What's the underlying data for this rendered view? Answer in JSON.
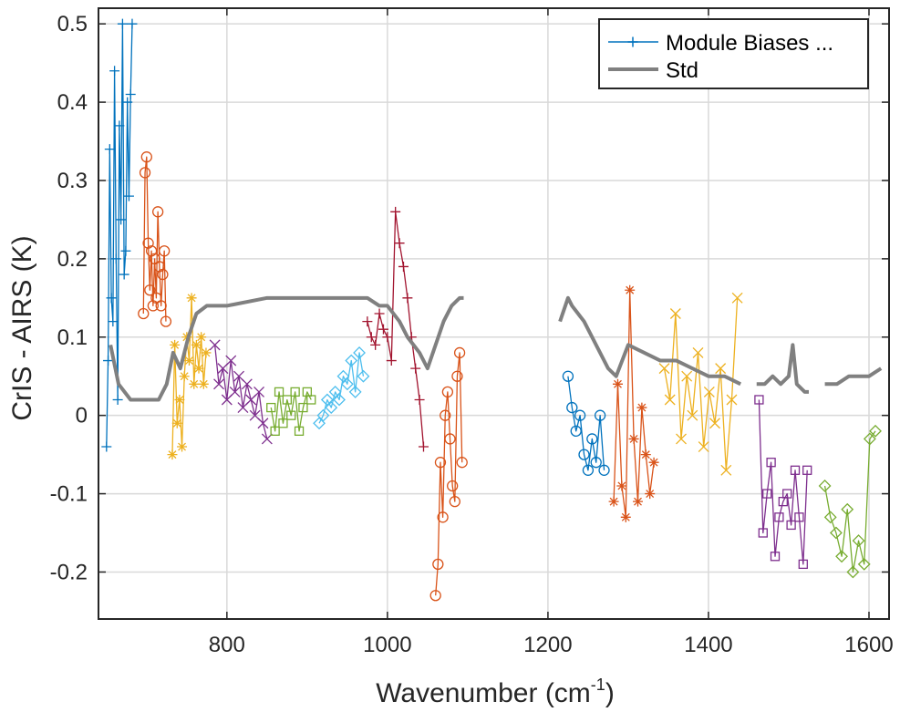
{
  "chart_data": {
    "type": "line",
    "xlabel": "Wavenumber (cm",
    "xlabel_superscript": "-1",
    "xlabel_suffix": ")",
    "ylabel": "CrIS - AIRS (K)",
    "xlim": [
      640,
      1625
    ],
    "ylim": [
      -0.26,
      0.52
    ],
    "grid": true,
    "legend_position": "top-right",
    "x_ticks": [
      800,
      1000,
      1200,
      1400,
      1600
    ],
    "y_ticks": [
      0.5,
      0.4,
      0.3,
      0.2,
      0.1,
      0,
      -0.1,
      -0.2
    ],
    "y_tick_labels": [
      "0.5",
      "0.4",
      "0.3",
      "0.2",
      "0.1",
      "0",
      "-0.1",
      "-0.2"
    ],
    "legend": [
      {
        "label": "Module Biases ...",
        "color": "#0072BD",
        "marker": "plus"
      },
      {
        "label": "Std",
        "color": "#808080",
        "marker": "none"
      }
    ],
    "series": [
      {
        "name": "Module Biases ...",
        "color": "#0072BD",
        "marker": "plus",
        "x": [
          650,
          652,
          654,
          656,
          658,
          660,
          662,
          664,
          666,
          668,
          670,
          672,
          674,
          676,
          678,
          680,
          682
        ],
        "y": [
          -0.04,
          0.07,
          0.34,
          0.15,
          0.12,
          0.44,
          0.2,
          0.02,
          0.37,
          0.25,
          0.5,
          0.18,
          0.21,
          0.4,
          0.28,
          0.41,
          0.5
        ]
      },
      {
        "color": "#D95319",
        "marker": "circle",
        "x": [
          696,
          698,
          700,
          702,
          704,
          706,
          708,
          710,
          712,
          714,
          716,
          718,
          720,
          722,
          724
        ],
        "y": [
          0.13,
          0.31,
          0.33,
          0.22,
          0.16,
          0.21,
          0.14,
          0.2,
          0.15,
          0.26,
          0.19,
          0.14,
          0.18,
          0.21,
          0.12
        ]
      },
      {
        "color": "#EDB120",
        "marker": "star",
        "x": [
          732,
          735,
          738,
          741,
          744,
          747,
          750,
          753,
          756,
          759,
          762,
          765,
          768,
          771,
          774
        ],
        "y": [
          -0.05,
          0.09,
          -0.01,
          0.02,
          -0.04,
          0.05,
          0.1,
          0.07,
          0.15,
          0.04,
          0.09,
          0.06,
          0.1,
          0.04,
          0.08
        ]
      },
      {
        "color": "#7E2F8E",
        "marker": "x",
        "x": [
          785,
          790,
          795,
          800,
          805,
          810,
          815,
          820,
          825,
          830,
          835,
          840,
          845,
          850
        ],
        "y": [
          0.09,
          0.04,
          0.06,
          0.02,
          0.07,
          0.03,
          0.05,
          0.01,
          0.04,
          0.02,
          0.0,
          0.03,
          -0.01,
          -0.03
        ]
      },
      {
        "color": "#77AC30",
        "marker": "square",
        "x": [
          855,
          860,
          865,
          870,
          875,
          880,
          885,
          890,
          895,
          900,
          905
        ],
        "y": [
          0.01,
          -0.02,
          0.03,
          -0.01,
          0.02,
          0.0,
          0.03,
          -0.02,
          0.01,
          0.03,
          0.02
        ]
      },
      {
        "color": "#4DBEEE",
        "marker": "diamond",
        "x": [
          915,
          920,
          925,
          930,
          935,
          940,
          945,
          950,
          955,
          960,
          965,
          970
        ],
        "y": [
          -0.01,
          0.0,
          0.02,
          0.01,
          0.03,
          0.02,
          0.05,
          0.04,
          0.07,
          0.03,
          0.08,
          0.05
        ]
      },
      {
        "color": "#A2142F",
        "marker": "plus",
        "x": [
          975,
          980,
          985,
          990,
          995,
          1000,
          1005,
          1010,
          1015,
          1020,
          1025,
          1030,
          1035,
          1040,
          1045
        ],
        "y": [
          0.12,
          0.1,
          0.09,
          0.13,
          0.11,
          0.1,
          0.07,
          0.26,
          0.22,
          0.19,
          0.15,
          0.1,
          0.06,
          0.02,
          -0.04
        ]
      },
      {
        "color": "#D95319",
        "marker": "circle",
        "x": [
          1060,
          1063,
          1066,
          1069,
          1072,
          1075,
          1078,
          1081,
          1084,
          1087,
          1090,
          1093
        ],
        "y": [
          -0.23,
          -0.19,
          -0.06,
          -0.13,
          0.0,
          0.03,
          -0.03,
          -0.09,
          -0.11,
          0.05,
          0.08,
          -0.06
        ]
      },
      {
        "color": "#0072BD",
        "marker": "circle",
        "x": [
          1225,
          1230,
          1235,
          1240,
          1245,
          1250,
          1255,
          1260,
          1265,
          1270
        ],
        "y": [
          0.05,
          0.01,
          -0.02,
          0.0,
          -0.05,
          -0.07,
          -0.03,
          -0.06,
          0.0,
          -0.07
        ]
      },
      {
        "color": "#D95319",
        "marker": "star",
        "x": [
          1282,
          1287,
          1292,
          1297,
          1302,
          1307,
          1312,
          1317,
          1322,
          1327,
          1332
        ],
        "y": [
          -0.11,
          0.04,
          -0.09,
          -0.13,
          0.16,
          -0.03,
          -0.11,
          0.01,
          -0.05,
          -0.1,
          -0.06
        ]
      },
      {
        "color": "#EDB120",
        "marker": "x",
        "x": [
          1345,
          1352,
          1359,
          1366,
          1373,
          1380,
          1387,
          1394,
          1401,
          1408,
          1415,
          1422,
          1429,
          1436
        ],
        "y": [
          0.06,
          0.02,
          0.13,
          -0.03,
          0.05,
          0.0,
          0.08,
          -0.04,
          0.03,
          -0.01,
          0.06,
          -0.07,
          0.02,
          0.15
        ]
      },
      {
        "color": "#7E2F8E",
        "marker": "square",
        "x": [
          1463,
          1468,
          1473,
          1478,
          1483,
          1488,
          1493,
          1498,
          1503,
          1508,
          1513,
          1518,
          1523
        ],
        "y": [
          0.02,
          -0.15,
          -0.1,
          -0.06,
          -0.18,
          -0.13,
          -0.11,
          -0.1,
          -0.14,
          -0.07,
          -0.13,
          -0.19,
          -0.07
        ]
      },
      {
        "color": "#77AC30",
        "marker": "diamond",
        "x": [
          1545,
          1552,
          1559,
          1566,
          1573,
          1580,
          1587,
          1594,
          1601,
          1608
        ],
        "y": [
          -0.09,
          -0.13,
          -0.15,
          -0.18,
          -0.12,
          -0.2,
          -0.16,
          -0.19,
          -0.03,
          -0.02
        ]
      },
      {
        "name": "Std",
        "color": "#808080",
        "marker": "none",
        "x": [
          655,
          665,
          680,
          700,
          715,
          725,
          733,
          742,
          752,
          762,
          775,
          800,
          850,
          900,
          950,
          975,
          990,
          1000,
          1015,
          1025,
          1040,
          1050,
          1060,
          1070,
          1080,
          1090,
          1095
        ],
        "y": [
          0.09,
          0.04,
          0.02,
          0.02,
          0.02,
          0.04,
          0.08,
          0.06,
          0.1,
          0.13,
          0.14,
          0.14,
          0.15,
          0.15,
          0.15,
          0.15,
          0.14,
          0.14,
          0.12,
          0.1,
          0.08,
          0.06,
          0.09,
          0.12,
          0.14,
          0.15,
          0.15
        ]
      },
      {
        "color": "#808080",
        "marker": "none",
        "x": [
          1215,
          1225,
          1230,
          1245,
          1260,
          1275,
          1285,
          1300,
          1320,
          1340,
          1360,
          1380,
          1400,
          1420,
          1440
        ],
        "y": [
          0.12,
          0.15,
          0.14,
          0.12,
          0.09,
          0.06,
          0.05,
          0.09,
          0.08,
          0.07,
          0.07,
          0.06,
          0.05,
          0.05,
          0.04
        ]
      },
      {
        "color": "#808080",
        "marker": "none",
        "x": [
          1460,
          1470,
          1480,
          1490,
          1500,
          1505,
          1510,
          1520,
          1525
        ],
        "y": [
          0.04,
          0.04,
          0.05,
          0.04,
          0.05,
          0.09,
          0.04,
          0.03,
          0.03
        ]
      },
      {
        "color": "#808080",
        "marker": "none",
        "x": [
          1545,
          1560,
          1575,
          1590,
          1600,
          1615
        ],
        "y": [
          0.04,
          0.04,
          0.05,
          0.05,
          0.05,
          0.06
        ]
      }
    ]
  }
}
